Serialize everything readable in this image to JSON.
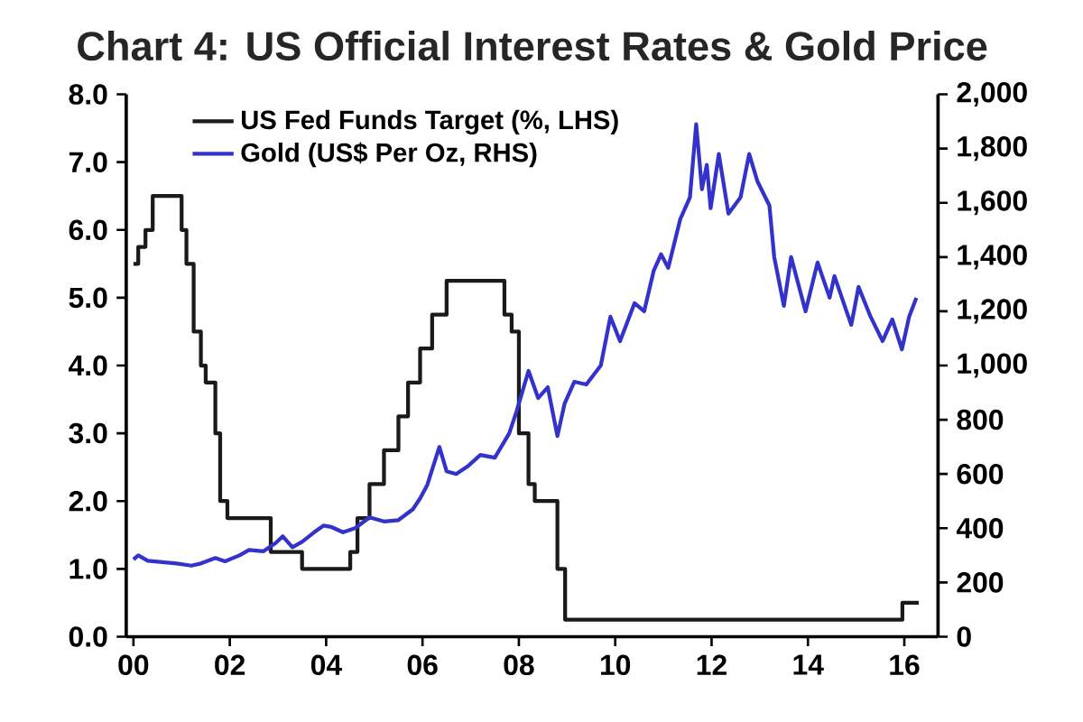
{
  "chart_data": {
    "type": "line",
    "title": "Chart 4: US Official Interest Rates & Gold Price",
    "xlim": [
      1999.85,
      2016.7
    ],
    "xticks": [
      {
        "value": 2000,
        "label": "00"
      },
      {
        "value": 2002,
        "label": "02"
      },
      {
        "value": 2004,
        "label": "04"
      },
      {
        "value": 2006,
        "label": "06"
      },
      {
        "value": 2008,
        "label": "08"
      },
      {
        "value": 2010,
        "label": "10"
      },
      {
        "value": 2012,
        "label": "12"
      },
      {
        "value": 2014,
        "label": "14"
      },
      {
        "value": 2016,
        "label": "16"
      }
    ],
    "ylim": [
      0,
      8
    ],
    "yticks": [
      {
        "value": 0,
        "label": "0.0"
      },
      {
        "value": 1,
        "label": "1.0"
      },
      {
        "value": 2,
        "label": "2.0"
      },
      {
        "value": 3,
        "label": "3.0"
      },
      {
        "value": 4,
        "label": "4.0"
      },
      {
        "value": 5,
        "label": "5.0"
      },
      {
        "value": 6,
        "label": "6.0"
      },
      {
        "value": 7,
        "label": "7.0"
      },
      {
        "value": 8,
        "label": "8.0"
      }
    ],
    "y2lim": [
      0,
      2000
    ],
    "y2ticks": [
      0,
      200,
      400,
      600,
      800,
      {
        "value": 1000,
        "label": "1,000"
      },
      {
        "value": 1200,
        "label": "1,200"
      },
      {
        "value": 1400,
        "label": "1,400"
      },
      {
        "value": 1600,
        "label": "1,600"
      },
      {
        "value": 1800,
        "label": "1,800"
      },
      {
        "value": 2000,
        "label": "2,000"
      }
    ],
    "legend": "top left",
    "grid": false,
    "series": [
      {
        "name": "US Fed Funds Target (%, LHS)",
        "type": "step",
        "color": "#1a1a1a",
        "x": [
          2000.0,
          2000.1,
          2000.25,
          2000.4,
          2001.0,
          2001.1,
          2001.25,
          2001.4,
          2001.5,
          2001.7,
          2001.8,
          2001.95,
          2002.85,
          2003.5,
          2004.5,
          2004.65,
          2004.9,
          2005.2,
          2005.5,
          2005.7,
          2005.95,
          2006.2,
          2006.5,
          2007.7,
          2007.85,
          2008.0,
          2008.2,
          2008.33,
          2008.8,
          2008.96,
          2015.96,
          2016.3
        ],
        "values": [
          5.5,
          5.75,
          6.0,
          6.5,
          6.0,
          5.5,
          4.5,
          4.0,
          3.75,
          3.0,
          2.0,
          1.75,
          1.25,
          1.0,
          1.25,
          1.75,
          2.25,
          2.75,
          3.25,
          3.75,
          4.25,
          4.75,
          5.25,
          4.75,
          4.5,
          3.0,
          2.25,
          2.0,
          1.0,
          0.25,
          0.5,
          0.5
        ]
      },
      {
        "name": "Gold (US$ Per Oz, RHS)",
        "axis": "y2",
        "color": "#3333cc",
        "x": [
          2000.0,
          2000.1,
          2000.3,
          2000.6,
          2000.9,
          2001.2,
          2001.4,
          2001.7,
          2001.9,
          2002.2,
          2002.4,
          2002.7,
          2002.95,
          2003.1,
          2003.3,
          2003.5,
          2003.75,
          2003.95,
          2004.1,
          2004.35,
          2004.6,
          2004.9,
          2005.2,
          2005.5,
          2005.8,
          2005.95,
          2006.1,
          2006.35,
          2006.5,
          2006.7,
          2006.95,
          2007.2,
          2007.5,
          2007.8,
          2007.95,
          2008.2,
          2008.4,
          2008.6,
          2008.8,
          2008.95,
          2009.15,
          2009.4,
          2009.7,
          2009.9,
          2010.1,
          2010.4,
          2010.6,
          2010.8,
          2010.95,
          2011.1,
          2011.35,
          2011.55,
          2011.68,
          2011.8,
          2011.9,
          2011.98,
          2012.15,
          2012.35,
          2012.6,
          2012.78,
          2012.95,
          2013.2,
          2013.3,
          2013.5,
          2013.65,
          2013.95,
          2014.2,
          2014.45,
          2014.55,
          2014.8,
          2014.9,
          2015.05,
          2015.3,
          2015.55,
          2015.75,
          2015.95,
          2016.1,
          2016.25
        ],
        "values": [
          285,
          300,
          280,
          275,
          270,
          262,
          270,
          290,
          278,
          300,
          320,
          315,
          345,
          370,
          330,
          350,
          385,
          410,
          405,
          385,
          400,
          440,
          425,
          430,
          470,
          510,
          560,
          700,
          610,
          600,
          630,
          670,
          660,
          750,
          830,
          980,
          880,
          920,
          740,
          860,
          940,
          930,
          1000,
          1180,
          1090,
          1230,
          1200,
          1350,
          1410,
          1360,
          1540,
          1620,
          1890,
          1650,
          1740,
          1580,
          1780,
          1560,
          1620,
          1780,
          1680,
          1590,
          1400,
          1220,
          1400,
          1200,
          1380,
          1250,
          1330,
          1200,
          1150,
          1290,
          1180,
          1090,
          1170,
          1060,
          1180,
          1250
        ]
      }
    ]
  }
}
